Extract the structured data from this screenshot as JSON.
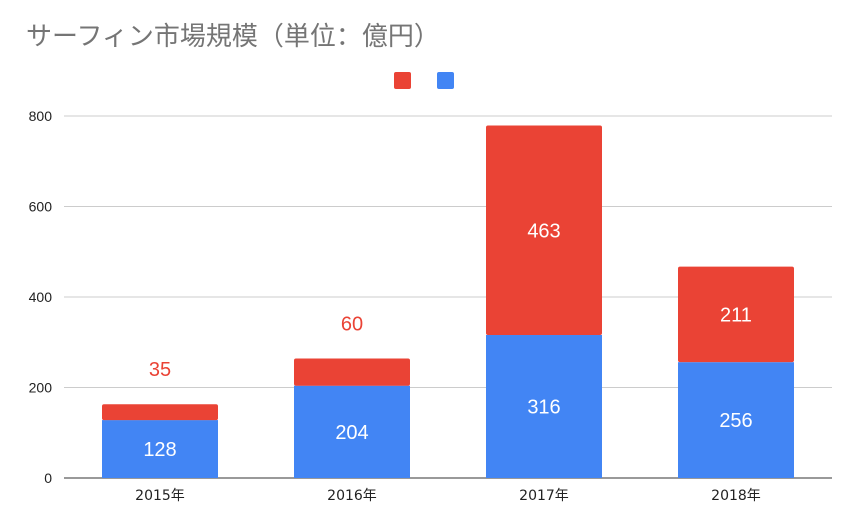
{
  "chart_data": {
    "type": "bar",
    "stacked": true,
    "title": "サーフィン市場規模（単位：億円）",
    "categories": [
      "2015年",
      "2016年",
      "2017年",
      "2018年"
    ],
    "series": [
      {
        "values": [
          128,
          204,
          316,
          256
        ],
        "color": "#4285f4",
        "label_color": "#ffffff"
      },
      {
        "values": [
          35,
          60,
          463,
          211
        ],
        "color": "#ea4335",
        "label_color_inside": "#ffffff",
        "label_color_outside": "#ea4335"
      }
    ],
    "ylim": [
      0,
      800
    ],
    "yticks": [
      0,
      200,
      400,
      600,
      800
    ],
    "grid": true,
    "legend": "top-center"
  }
}
